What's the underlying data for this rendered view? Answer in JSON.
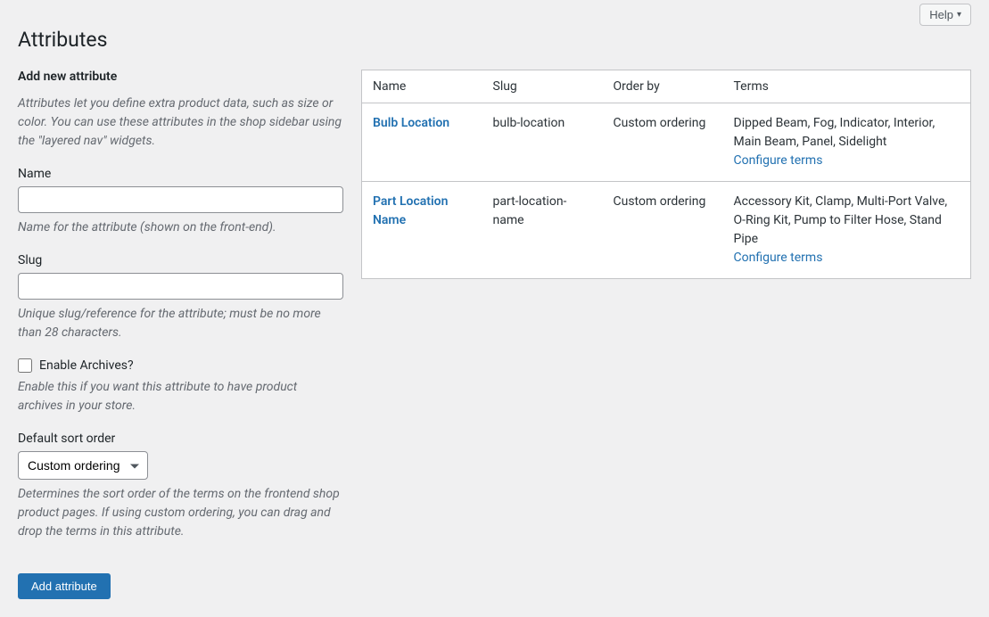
{
  "help_button": "Help",
  "page_title": "Attributes",
  "form": {
    "section_title": "Add new attribute",
    "intro": "Attributes let you define extra product data, such as size or color. You can use these attributes in the shop sidebar using the \"layered nav\" widgets.",
    "name_label": "Name",
    "name_value": "",
    "name_help": "Name for the attribute (shown on the front-end).",
    "slug_label": "Slug",
    "slug_value": "",
    "slug_help": "Unique slug/reference for the attribute; must be no more than 28 characters.",
    "enable_archives_label": "Enable Archives?",
    "enable_archives_help": "Enable this if you want this attribute to have product archives in your store.",
    "sort_label": "Default sort order",
    "sort_selected": "Custom ordering",
    "sort_help": "Determines the sort order of the terms on the frontend shop product pages. If using custom ordering, you can drag and drop the terms in this attribute.",
    "submit_label": "Add attribute"
  },
  "table": {
    "headers": {
      "name": "Name",
      "slug": "Slug",
      "order_by": "Order by",
      "terms": "Terms"
    },
    "configure_label": "Configure terms",
    "rows": [
      {
        "name": "Bulb Location",
        "slug": "bulb-location",
        "order_by": "Custom ordering",
        "terms": "Dipped Beam, Fog, Indicator, Interior, Main Beam, Panel, Sidelight"
      },
      {
        "name": "Part Location Name",
        "slug": "part-location-name",
        "order_by": "Custom ordering",
        "terms": "Accessory Kit, Clamp, Multi-Port Valve, O-Ring Kit, Pump to Filter Hose, Stand Pipe"
      }
    ]
  }
}
